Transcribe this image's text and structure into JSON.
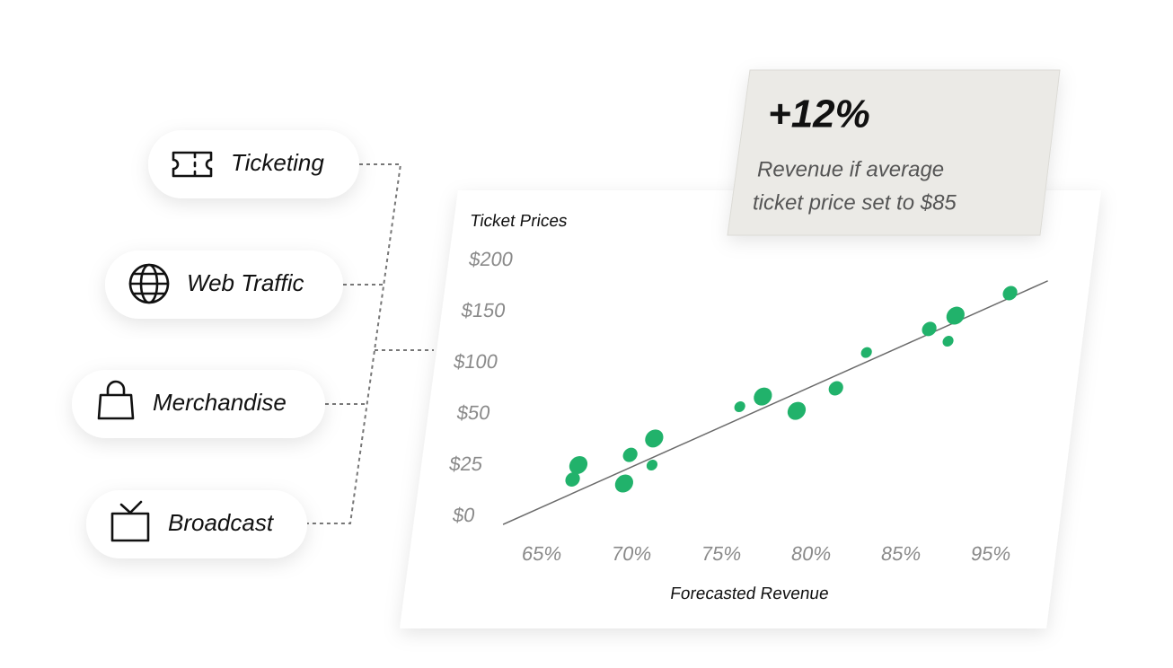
{
  "sources": [
    "Ticketing",
    "Web Traffic",
    "Merchandise",
    "Broadcast"
  ],
  "callout": {
    "value": "+12%",
    "text_lines": [
      "Revenue if average",
      "ticket price set to $85"
    ]
  },
  "chart_data": {
    "type": "scatter",
    "y_label": "Ticket Prices",
    "x_label": "Forecasted Revenue",
    "color": "#21b26b",
    "x": [
      66.1,
      66.3,
      69.0,
      69.1,
      70.4,
      70.3,
      74.8,
      76.0,
      78.0,
      80.0,
      81.4,
      84.7,
      86.7,
      87.1,
      92.8
    ],
    "values": [
      18,
      25,
      16,
      30,
      25,
      38,
      57,
      67,
      53,
      75,
      110,
      133,
      121,
      146,
      168
    ],
    "sizes": [
      2,
      3,
      3,
      2,
      1,
      3,
      1,
      3,
      3,
      2,
      1,
      2,
      1,
      3,
      2
    ],
    "xlim": [
      62,
      98
    ],
    "ylim": [
      -5,
      200
    ],
    "xticks": [
      {
        "value": 65,
        "label": "65%"
      },
      {
        "value": 70,
        "label": "70%"
      },
      {
        "value": 75,
        "label": "75%"
      },
      {
        "value": 80,
        "label": "80%"
      },
      {
        "value": 85,
        "label": "85%"
      },
      {
        "value": 95,
        "label": "95%"
      }
    ],
    "yticks": [
      {
        "value": 0,
        "label": "$0"
      },
      {
        "value": 25,
        "label": "$25"
      },
      {
        "value": 50,
        "label": "$50"
      },
      {
        "value": 100,
        "label": "$100"
      },
      {
        "value": 150,
        "label": "$150"
      },
      {
        "value": 200,
        "label": "$200"
      }
    ],
    "trend_line": {
      "x": [
        62.6,
        96.8
      ],
      "values": [
        -4,
        180
      ],
      "color": "#6b6b6b"
    }
  }
}
